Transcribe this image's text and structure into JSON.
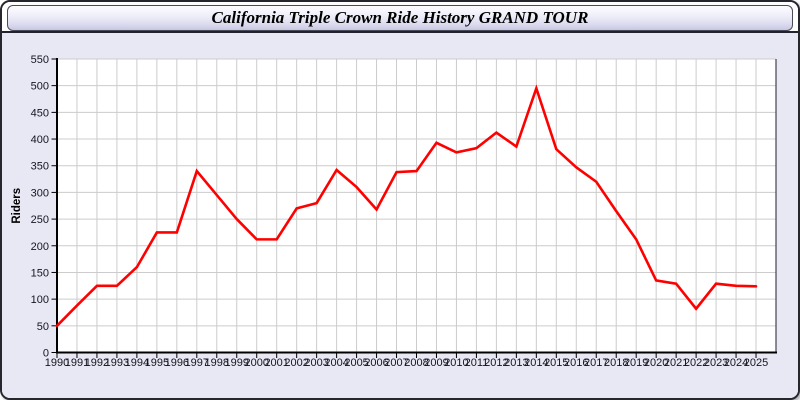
{
  "header": {
    "title": "California Triple Crown Ride History GRAND TOUR"
  },
  "colors": {
    "panel_bg": "#e8e8f5",
    "plot_bg": "#ffffff",
    "grid": "#cccccc",
    "axis": "#000000",
    "line": "#ff0000",
    "tick_label": "#15151f"
  },
  "chart_data": {
    "type": "line",
    "title": "California Triple Crown Ride History GRAND TOUR",
    "xlabel": "",
    "ylabel": "Riders",
    "ylim": [
      0,
      550
    ],
    "ytick_step": 50,
    "grid": true,
    "legend": "none",
    "x": [
      1990,
      1991,
      1992,
      1993,
      1994,
      1995,
      1996,
      1997,
      1998,
      1999,
      2000,
      2001,
      2002,
      2003,
      2004,
      2005,
      2006,
      2007,
      2008,
      2009,
      2010,
      2011,
      2012,
      2013,
      2014,
      2015,
      2016,
      2017,
      2018,
      2019,
      2020,
      2021,
      2022,
      2023,
      2024,
      2025
    ],
    "series": [
      {
        "name": "Riders",
        "color": "#ff0000",
        "values": [
          50,
          88,
          125,
          125,
          160,
          225,
          225,
          340,
          295,
          250,
          212,
          212,
          270,
          280,
          342,
          310,
          268,
          338,
          340,
          393,
          375,
          383,
          412,
          386,
          495,
          381,
          347,
          320,
          265,
          212,
          135,
          129,
          82,
          129,
          125,
          124
        ]
      }
    ]
  }
}
